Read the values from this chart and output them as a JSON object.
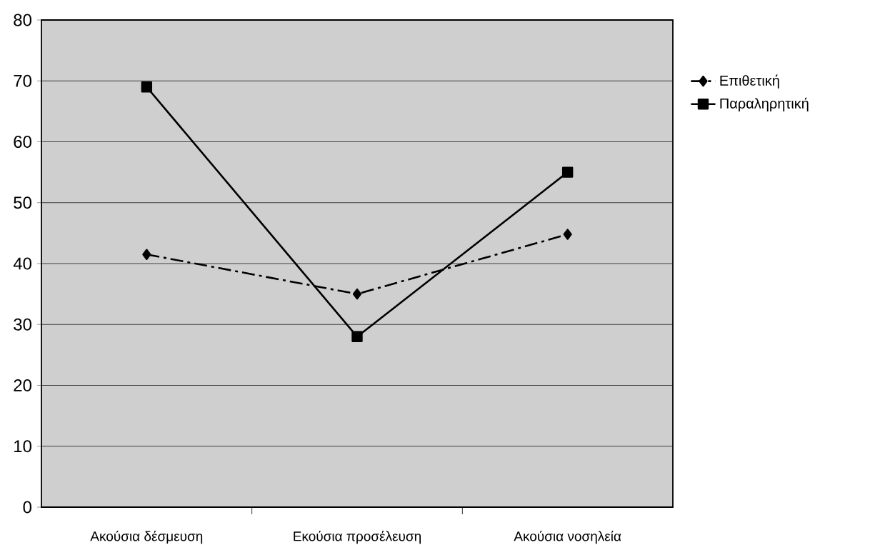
{
  "chart_data": {
    "type": "line",
    "categories": [
      "Ακούσια δέσμευση",
      "Εκούσια προσέλευση",
      "Ακούσια νοσηλεία"
    ],
    "series": [
      {
        "name": "Επιθετική",
        "color": "#000000",
        "values": [
          41.5,
          35,
          44.8
        ],
        "marker": "diamond",
        "line_style": "dashdot"
      },
      {
        "name": "Παραληρητική",
        "color": "#000000",
        "values": [
          69,
          28,
          55
        ],
        "marker": "square",
        "line_style": "solid"
      }
    ],
    "ylim": [
      0,
      80
    ],
    "yticks": [
      0,
      10,
      20,
      30,
      40,
      50,
      60,
      70,
      80
    ],
    "grid": "y",
    "legend": "top right"
  }
}
